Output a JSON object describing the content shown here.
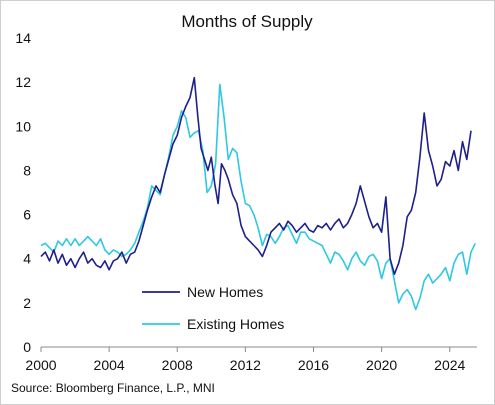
{
  "chart_data": {
    "type": "line",
    "title": "Months of Supply",
    "xlabel": "",
    "ylabel": "",
    "xlim": [
      2000,
      2025.6
    ],
    "ylim": [
      0,
      14
    ],
    "xticks": [
      2000,
      2004,
      2008,
      2012,
      2016,
      2020,
      2024
    ],
    "yticks": [
      0,
      2,
      4,
      6,
      8,
      10,
      12,
      14
    ],
    "grid": false,
    "legend_placement": "lower-center",
    "source": "Source: Bloomberg Finance, L.P., MNI",
    "series": [
      {
        "name": "New Homes",
        "color": "#1f1f8c",
        "points": [
          [
            2000.0,
            4.1
          ],
          [
            2000.25,
            4.3
          ],
          [
            2000.5,
            3.9
          ],
          [
            2000.75,
            4.4
          ],
          [
            2001.0,
            3.8
          ],
          [
            2001.25,
            4.2
          ],
          [
            2001.5,
            3.7
          ],
          [
            2001.75,
            4.0
          ],
          [
            2002.0,
            3.6
          ],
          [
            2002.25,
            4.0
          ],
          [
            2002.5,
            4.3
          ],
          [
            2002.75,
            3.8
          ],
          [
            2003.0,
            4.0
          ],
          [
            2003.25,
            3.7
          ],
          [
            2003.5,
            3.6
          ],
          [
            2003.75,
            3.9
          ],
          [
            2004.0,
            3.5
          ],
          [
            2004.25,
            3.9
          ],
          [
            2004.5,
            4.0
          ],
          [
            2004.75,
            4.3
          ],
          [
            2005.0,
            3.8
          ],
          [
            2005.25,
            4.2
          ],
          [
            2005.5,
            4.3
          ],
          [
            2005.75,
            4.8
          ],
          [
            2006.0,
            5.5
          ],
          [
            2006.25,
            6.2
          ],
          [
            2006.5,
            6.8
          ],
          [
            2006.75,
            7.3
          ],
          [
            2007.0,
            7.0
          ],
          [
            2007.25,
            7.8
          ],
          [
            2007.5,
            8.5
          ],
          [
            2007.75,
            9.2
          ],
          [
            2008.0,
            9.6
          ],
          [
            2008.25,
            10.4
          ],
          [
            2008.5,
            10.9
          ],
          [
            2008.75,
            11.3
          ],
          [
            2009.0,
            12.2
          ],
          [
            2009.2,
            10.5
          ],
          [
            2009.4,
            9.0
          ],
          [
            2009.6,
            8.5
          ],
          [
            2009.8,
            8.0
          ],
          [
            2010.0,
            8.6
          ],
          [
            2010.2,
            7.4
          ],
          [
            2010.4,
            6.5
          ],
          [
            2010.6,
            8.3
          ],
          [
            2010.8,
            8.0
          ],
          [
            2011.0,
            7.6
          ],
          [
            2011.25,
            6.9
          ],
          [
            2011.5,
            6.5
          ],
          [
            2011.75,
            5.5
          ],
          [
            2012.0,
            5.0
          ],
          [
            2012.25,
            4.8
          ],
          [
            2012.5,
            4.6
          ],
          [
            2012.75,
            4.4
          ],
          [
            2013.0,
            4.1
          ],
          [
            2013.25,
            4.6
          ],
          [
            2013.5,
            5.2
          ],
          [
            2013.75,
            5.4
          ],
          [
            2014.0,
            5.6
          ],
          [
            2014.25,
            5.3
          ],
          [
            2014.5,
            5.7
          ],
          [
            2014.75,
            5.5
          ],
          [
            2015.0,
            5.2
          ],
          [
            2015.25,
            5.4
          ],
          [
            2015.5,
            5.6
          ],
          [
            2015.75,
            5.3
          ],
          [
            2016.0,
            5.2
          ],
          [
            2016.25,
            5.5
          ],
          [
            2016.5,
            5.4
          ],
          [
            2016.75,
            5.6
          ],
          [
            2017.0,
            5.3
          ],
          [
            2017.25,
            5.6
          ],
          [
            2017.5,
            5.8
          ],
          [
            2017.75,
            5.4
          ],
          [
            2018.0,
            5.6
          ],
          [
            2018.25,
            6.0
          ],
          [
            2018.5,
            6.5
          ],
          [
            2018.75,
            7.3
          ],
          [
            2019.0,
            6.6
          ],
          [
            2019.25,
            5.9
          ],
          [
            2019.5,
            5.4
          ],
          [
            2019.75,
            5.6
          ],
          [
            2020.0,
            5.2
          ],
          [
            2020.25,
            6.8
          ],
          [
            2020.5,
            4.0
          ],
          [
            2020.75,
            3.3
          ],
          [
            2021.0,
            3.8
          ],
          [
            2021.25,
            4.6
          ],
          [
            2021.5,
            5.9
          ],
          [
            2021.75,
            6.2
          ],
          [
            2022.0,
            7.0
          ],
          [
            2022.25,
            8.6
          ],
          [
            2022.5,
            10.6
          ],
          [
            2022.75,
            8.9
          ],
          [
            2023.0,
            8.2
          ],
          [
            2023.25,
            7.3
          ],
          [
            2023.5,
            7.6
          ],
          [
            2023.75,
            8.4
          ],
          [
            2024.0,
            8.2
          ],
          [
            2024.25,
            8.9
          ],
          [
            2024.5,
            8.0
          ],
          [
            2024.75,
            9.3
          ],
          [
            2025.0,
            8.5
          ],
          [
            2025.25,
            9.8
          ]
        ]
      },
      {
        "name": "Existing Homes",
        "color": "#2ec9e0",
        "points": [
          [
            2000.0,
            4.6
          ],
          [
            2000.25,
            4.7
          ],
          [
            2000.5,
            4.5
          ],
          [
            2000.75,
            4.3
          ],
          [
            2001.0,
            4.8
          ],
          [
            2001.25,
            4.6
          ],
          [
            2001.5,
            4.9
          ],
          [
            2001.75,
            4.6
          ],
          [
            2002.0,
            4.9
          ],
          [
            2002.25,
            4.6
          ],
          [
            2002.5,
            4.8
          ],
          [
            2002.75,
            5.0
          ],
          [
            2003.0,
            4.8
          ],
          [
            2003.25,
            4.6
          ],
          [
            2003.5,
            4.9
          ],
          [
            2003.75,
            4.4
          ],
          [
            2004.0,
            4.2
          ],
          [
            2004.25,
            4.4
          ],
          [
            2004.5,
            4.3
          ],
          [
            2004.75,
            4.1
          ],
          [
            2005.0,
            4.2
          ],
          [
            2005.25,
            4.4
          ],
          [
            2005.5,
            4.7
          ],
          [
            2005.75,
            5.2
          ],
          [
            2006.0,
            5.7
          ],
          [
            2006.25,
            6.3
          ],
          [
            2006.5,
            7.3
          ],
          [
            2006.75,
            7.1
          ],
          [
            2007.0,
            6.9
          ],
          [
            2007.25,
            7.8
          ],
          [
            2007.5,
            8.6
          ],
          [
            2007.75,
            9.6
          ],
          [
            2008.0,
            10.0
          ],
          [
            2008.25,
            10.7
          ],
          [
            2008.5,
            10.4
          ],
          [
            2008.75,
            9.5
          ],
          [
            2009.0,
            9.7
          ],
          [
            2009.25,
            9.8
          ],
          [
            2009.5,
            8.9
          ],
          [
            2009.75,
            7.0
          ],
          [
            2010.0,
            7.3
          ],
          [
            2010.25,
            8.3
          ],
          [
            2010.5,
            11.9
          ],
          [
            2010.75,
            10.4
          ],
          [
            2011.0,
            8.5
          ],
          [
            2011.25,
            9.0
          ],
          [
            2011.5,
            8.8
          ],
          [
            2011.75,
            7.5
          ],
          [
            2012.0,
            6.5
          ],
          [
            2012.25,
            6.4
          ],
          [
            2012.5,
            6.0
          ],
          [
            2012.75,
            5.4
          ],
          [
            2013.0,
            4.6
          ],
          [
            2013.25,
            5.1
          ],
          [
            2013.5,
            5.0
          ],
          [
            2013.75,
            4.7
          ],
          [
            2014.0,
            5.0
          ],
          [
            2014.25,
            5.4
          ],
          [
            2014.5,
            5.5
          ],
          [
            2014.75,
            5.1
          ],
          [
            2015.0,
            4.7
          ],
          [
            2015.25,
            5.2
          ],
          [
            2015.5,
            5.2
          ],
          [
            2015.75,
            4.9
          ],
          [
            2016.0,
            4.8
          ],
          [
            2016.25,
            4.7
          ],
          [
            2016.5,
            4.6
          ],
          [
            2016.75,
            4.2
          ],
          [
            2017.0,
            3.8
          ],
          [
            2017.25,
            4.3
          ],
          [
            2017.5,
            4.2
          ],
          [
            2017.75,
            3.9
          ],
          [
            2018.0,
            3.5
          ],
          [
            2018.25,
            4.0
          ],
          [
            2018.5,
            4.3
          ],
          [
            2018.75,
            3.9
          ],
          [
            2019.0,
            3.7
          ],
          [
            2019.25,
            4.1
          ],
          [
            2019.5,
            4.2
          ],
          [
            2019.75,
            3.9
          ],
          [
            2020.0,
            3.1
          ],
          [
            2020.25,
            3.8
          ],
          [
            2020.5,
            4.0
          ],
          [
            2020.75,
            3.0
          ],
          [
            2021.0,
            2.0
          ],
          [
            2021.25,
            2.4
          ],
          [
            2021.5,
            2.6
          ],
          [
            2021.75,
            2.3
          ],
          [
            2022.0,
            1.7
          ],
          [
            2022.25,
            2.2
          ],
          [
            2022.5,
            3.0
          ],
          [
            2022.75,
            3.3
          ],
          [
            2023.0,
            2.9
          ],
          [
            2023.25,
            3.1
          ],
          [
            2023.5,
            3.3
          ],
          [
            2023.75,
            3.6
          ],
          [
            2024.0,
            3.0
          ],
          [
            2024.25,
            3.8
          ],
          [
            2024.5,
            4.2
          ],
          [
            2024.75,
            4.3
          ],
          [
            2025.0,
            3.3
          ],
          [
            2025.25,
            4.3
          ],
          [
            2025.5,
            4.7
          ]
        ]
      }
    ]
  }
}
